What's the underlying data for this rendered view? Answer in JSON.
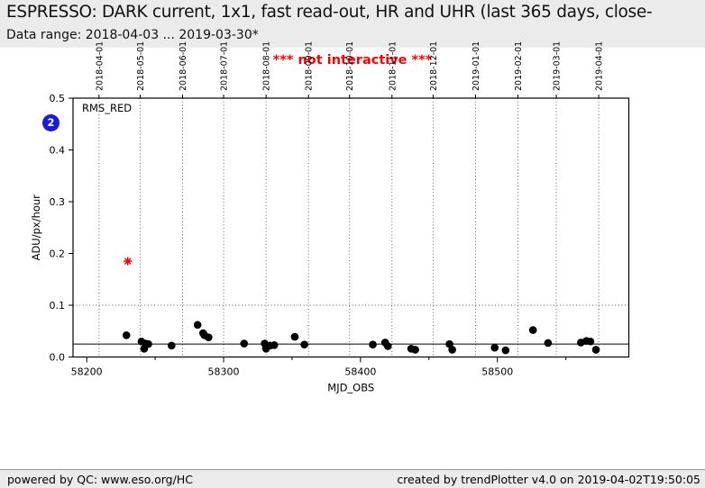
{
  "header": {
    "title": "ESPRESSO: DARK current, 1x1, fast read-out, HR and UHR (last 365 days, close-",
    "subtitle": "Data range: 2018-04-03 ... 2019-03-30*"
  },
  "banner": {
    "text": "*** not interactive ***",
    "color": "#ff0000"
  },
  "badge": {
    "label": "2",
    "color": "#1b1bd8"
  },
  "footer": {
    "left": "powered by QC: www.eso.org/HC",
    "right": "created by trendPlotter v4.0 on 2019-04-02T19:50:05"
  },
  "chart_data": {
    "type": "scatter",
    "inner_label": "RMS_RED",
    "xlabel": "MJD_OBS",
    "ylabel": "ADU/px/hour",
    "xlim": [
      58190,
      58596
    ],
    "ylim": [
      0.0,
      0.5
    ],
    "x_major_ticks": [
      58200,
      58300,
      58400,
      58500
    ],
    "x_minor_ticks": [
      58250,
      58350,
      58450,
      58550
    ],
    "y_ticks": [
      0.0,
      0.1,
      0.2,
      0.3,
      0.4,
      0.5
    ],
    "grid": "vertical-dotted-at-months",
    "top_axis_dates": [
      {
        "label": "2018-04-01",
        "mjd": 58209
      },
      {
        "label": "2018-05-01",
        "mjd": 58239
      },
      {
        "label": "2018-06-01",
        "mjd": 58270
      },
      {
        "label": "2018-07-01",
        "mjd": 58300
      },
      {
        "label": "2018-08-01",
        "mjd": 58331
      },
      {
        "label": "2018-09-01",
        "mjd": 58362
      },
      {
        "label": "2018-10-01",
        "mjd": 58392
      },
      {
        "label": "2018-11-01",
        "mjd": 58423
      },
      {
        "label": "2018-12-01",
        "mjd": 58453
      },
      {
        "label": "2019-01-01",
        "mjd": 58484
      },
      {
        "label": "2019-02-01",
        "mjd": 58515
      },
      {
        "label": "2019-03-01",
        "mjd": 58543
      },
      {
        "label": "2019-04-01",
        "mjd": 58574
      }
    ],
    "dotted_hline_y": 0.1,
    "solid_hline_y": 0.025,
    "series": [
      {
        "name": "RMS_RED",
        "marker": "circle",
        "color": "#000000",
        "points": [
          [
            58229,
            0.042
          ],
          [
            58240,
            0.03
          ],
          [
            58242,
            0.016
          ],
          [
            58243,
            0.026
          ],
          [
            58245,
            0.025
          ],
          [
            58262,
            0.022
          ],
          [
            58281,
            0.062
          ],
          [
            58285,
            0.046
          ],
          [
            58286,
            0.042
          ],
          [
            58289,
            0.038
          ],
          [
            58315,
            0.026
          ],
          [
            58330,
            0.026
          ],
          [
            58331,
            0.016
          ],
          [
            58334,
            0.022
          ],
          [
            58337,
            0.023
          ],
          [
            58352,
            0.039
          ],
          [
            58359,
            0.024
          ],
          [
            58409,
            0.024
          ],
          [
            58418,
            0.028
          ],
          [
            58420,
            0.021
          ],
          [
            58437,
            0.016
          ],
          [
            58440,
            0.014
          ],
          [
            58465,
            0.025
          ],
          [
            58467,
            0.014
          ],
          [
            58498,
            0.018
          ],
          [
            58506,
            0.013
          ],
          [
            58526,
            0.052
          ],
          [
            58537,
            0.027
          ],
          [
            58561,
            0.028
          ],
          [
            58565,
            0.031
          ],
          [
            58568,
            0.03
          ],
          [
            58572,
            0.014
          ]
        ]
      },
      {
        "name": "outlier",
        "marker": "asterisk",
        "color": "#ff0000",
        "points": [
          [
            58230,
            0.185
          ]
        ]
      }
    ]
  }
}
